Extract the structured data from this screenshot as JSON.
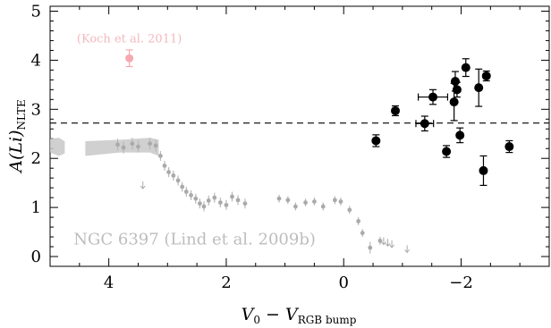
{
  "chart_data": {
    "type": "scatter",
    "xlabel": {
      "v_main": "V",
      "v_sub": "0",
      "dash": " − ",
      "v2_main": "V",
      "v2_sub": "RGB bump"
    },
    "ylabel": {
      "main": "A(Li)",
      "sub": "NLTE"
    },
    "x_axis": {
      "range": [
        5.0,
        -3.5
      ],
      "reversed": true,
      "ticks": [
        4,
        2,
        0,
        -2
      ],
      "tick_labels": [
        "4",
        "2",
        "0",
        "−2"
      ]
    },
    "y_axis": {
      "range": [
        -0.2,
        5.1
      ],
      "ticks": [
        0,
        1,
        2,
        3,
        4,
        5
      ],
      "tick_labels": [
        "0",
        "1",
        "2",
        "3",
        "4",
        "5"
      ]
    },
    "reference_line": {
      "y": 2.72,
      "style": "dashed"
    },
    "annotations": [
      {
        "text": "(Koch et al. 2011)",
        "x": 3.65,
        "y": 4.36,
        "color": "#f4b8bd"
      },
      {
        "text": "NGC 6397 (Lind et al. 2009b)",
        "x": 4.6,
        "y": 0.25,
        "color": "#bdbdbd"
      }
    ],
    "colors": {
      "this_work": "#000000",
      "koch": "#f4a9b0",
      "lind": "#aaaaaa",
      "lind_band": "#c8c8c8"
    },
    "series": [
      {
        "points": [
          {
            "x": -0.55,
            "y": 2.36,
            "yerr": 0.12
          },
          {
            "x": -0.88,
            "y": 2.97,
            "yerr": 0.1
          },
          {
            "x": -1.38,
            "y": 2.71,
            "yerr": 0.15,
            "xerr": 0.15
          },
          {
            "x": -1.52,
            "y": 3.25,
            "yerr": 0.15,
            "xerr": 0.25
          },
          {
            "x": -1.75,
            "y": 2.14,
            "yerr": 0.12
          },
          {
            "x": -1.88,
            "y": 3.15,
            "yerr": 0.38
          },
          {
            "x": -1.9,
            "y": 3.57,
            "yerr": 0.2
          },
          {
            "x": -1.93,
            "y": 3.4,
            "yerr": 0.15
          },
          {
            "x": -1.98,
            "y": 2.47,
            "yerr": 0.15
          },
          {
            "x": -2.08,
            "y": 3.85,
            "yerr": 0.18
          },
          {
            "x": -2.3,
            "y": 3.44,
            "yerr": 0.38
          },
          {
            "x": -2.38,
            "y": 1.75,
            "yerr": 0.3
          },
          {
            "x": -2.43,
            "y": 3.68,
            "yerr": 0.1
          },
          {
            "x": -2.82,
            "y": 2.24,
            "yerr": 0.12
          }
        ]
      },
      {
        "points": [
          {
            "x": 3.65,
            "y": 4.04,
            "yerr": 0.17
          }
        ]
      },
      {
        "points": [
          {
            "x": 3.85,
            "y": 2.28,
            "yerr": 0.12
          },
          {
            "x": 3.75,
            "y": 2.22,
            "yerr": 0.12
          },
          {
            "x": 3.6,
            "y": 2.3,
            "yerr": 0.12
          },
          {
            "x": 3.5,
            "y": 2.24,
            "yerr": 0.12
          },
          {
            "x": 3.3,
            "y": 2.3,
            "yerr": 0.12
          },
          {
            "x": 3.2,
            "y": 2.26,
            "yerr": 0.12
          },
          {
            "x": 3.12,
            "y": 2.05,
            "yerr": 0.1
          },
          {
            "x": 3.05,
            "y": 1.85,
            "yerr": 0.1
          },
          {
            "x": 2.98,
            "y": 1.72,
            "yerr": 0.1
          },
          {
            "x": 2.9,
            "y": 1.65,
            "yerr": 0.1
          },
          {
            "x": 2.82,
            "y": 1.55,
            "yerr": 0.1
          },
          {
            "x": 2.75,
            "y": 1.42,
            "yerr": 0.1
          },
          {
            "x": 2.68,
            "y": 1.32,
            "yerr": 0.1
          },
          {
            "x": 2.6,
            "y": 1.25,
            "yerr": 0.1
          },
          {
            "x": 2.52,
            "y": 1.18,
            "yerr": 0.1
          },
          {
            "x": 2.45,
            "y": 1.08,
            "yerr": 0.1
          },
          {
            "x": 2.38,
            "y": 1.02,
            "yerr": 0.1
          },
          {
            "x": 2.3,
            "y": 1.14,
            "yerr": 0.1
          },
          {
            "x": 2.2,
            "y": 1.2,
            "yerr": 0.1
          },
          {
            "x": 2.1,
            "y": 1.1,
            "yerr": 0.1
          },
          {
            "x": 2.0,
            "y": 1.05,
            "yerr": 0.1
          },
          {
            "x": 1.9,
            "y": 1.22,
            "yerr": 0.1
          },
          {
            "x": 1.8,
            "y": 1.15,
            "yerr": 0.1
          },
          {
            "x": 1.68,
            "y": 1.08,
            "yerr": 0.1
          },
          {
            "x": 1.1,
            "y": 1.18,
            "yerr": 0.08
          },
          {
            "x": 0.95,
            "y": 1.15,
            "yerr": 0.08
          },
          {
            "x": 0.82,
            "y": 1.02,
            "yerr": 0.08
          },
          {
            "x": 0.65,
            "y": 1.1,
            "yerr": 0.08
          },
          {
            "x": 0.5,
            "y": 1.12,
            "yerr": 0.08
          },
          {
            "x": 0.35,
            "y": 1.02,
            "yerr": 0.08
          },
          {
            "x": 0.15,
            "y": 1.15,
            "yerr": 0.08
          },
          {
            "x": 0.05,
            "y": 1.12,
            "yerr": 0.08
          },
          {
            "x": -0.1,
            "y": 0.95,
            "yerr": 0.08
          },
          {
            "x": -0.25,
            "y": 0.72,
            "yerr": 0.08
          },
          {
            "x": -0.32,
            "y": 0.48,
            "yerr": 0.08
          },
          {
            "x": -0.45,
            "y": 0.18,
            "yerr": 0.12
          },
          {
            "x": -0.62,
            "y": 0.32,
            "yerr": 0.08
          }
        ],
        "band": [
          {
            "x": 5.0,
            "y_low": 2.12,
            "y_high": 2.4
          },
          {
            "x": 4.85,
            "y_low": 2.05,
            "y_high": 2.42
          },
          {
            "x": 4.75,
            "y_low": 2.1,
            "y_high": 2.35
          }
        ],
        "band2": [
          {
            "x": 4.4,
            "y_low": 2.05,
            "y_high": 2.35
          },
          {
            "x": 3.8,
            "y_low": 2.12,
            "y_high": 2.38
          },
          {
            "x": 3.3,
            "y_low": 2.12,
            "y_high": 2.42
          },
          {
            "x": 3.15,
            "y_low": 2.05,
            "y_high": 2.38
          }
        ],
        "upper_limits": [
          {
            "x": 3.42,
            "y": 1.42
          },
          {
            "x": -0.68,
            "y": 0.28
          },
          {
            "x": -0.75,
            "y": 0.25
          },
          {
            "x": -0.82,
            "y": 0.22
          },
          {
            "x": -1.08,
            "y": 0.12
          }
        ]
      }
    ]
  }
}
